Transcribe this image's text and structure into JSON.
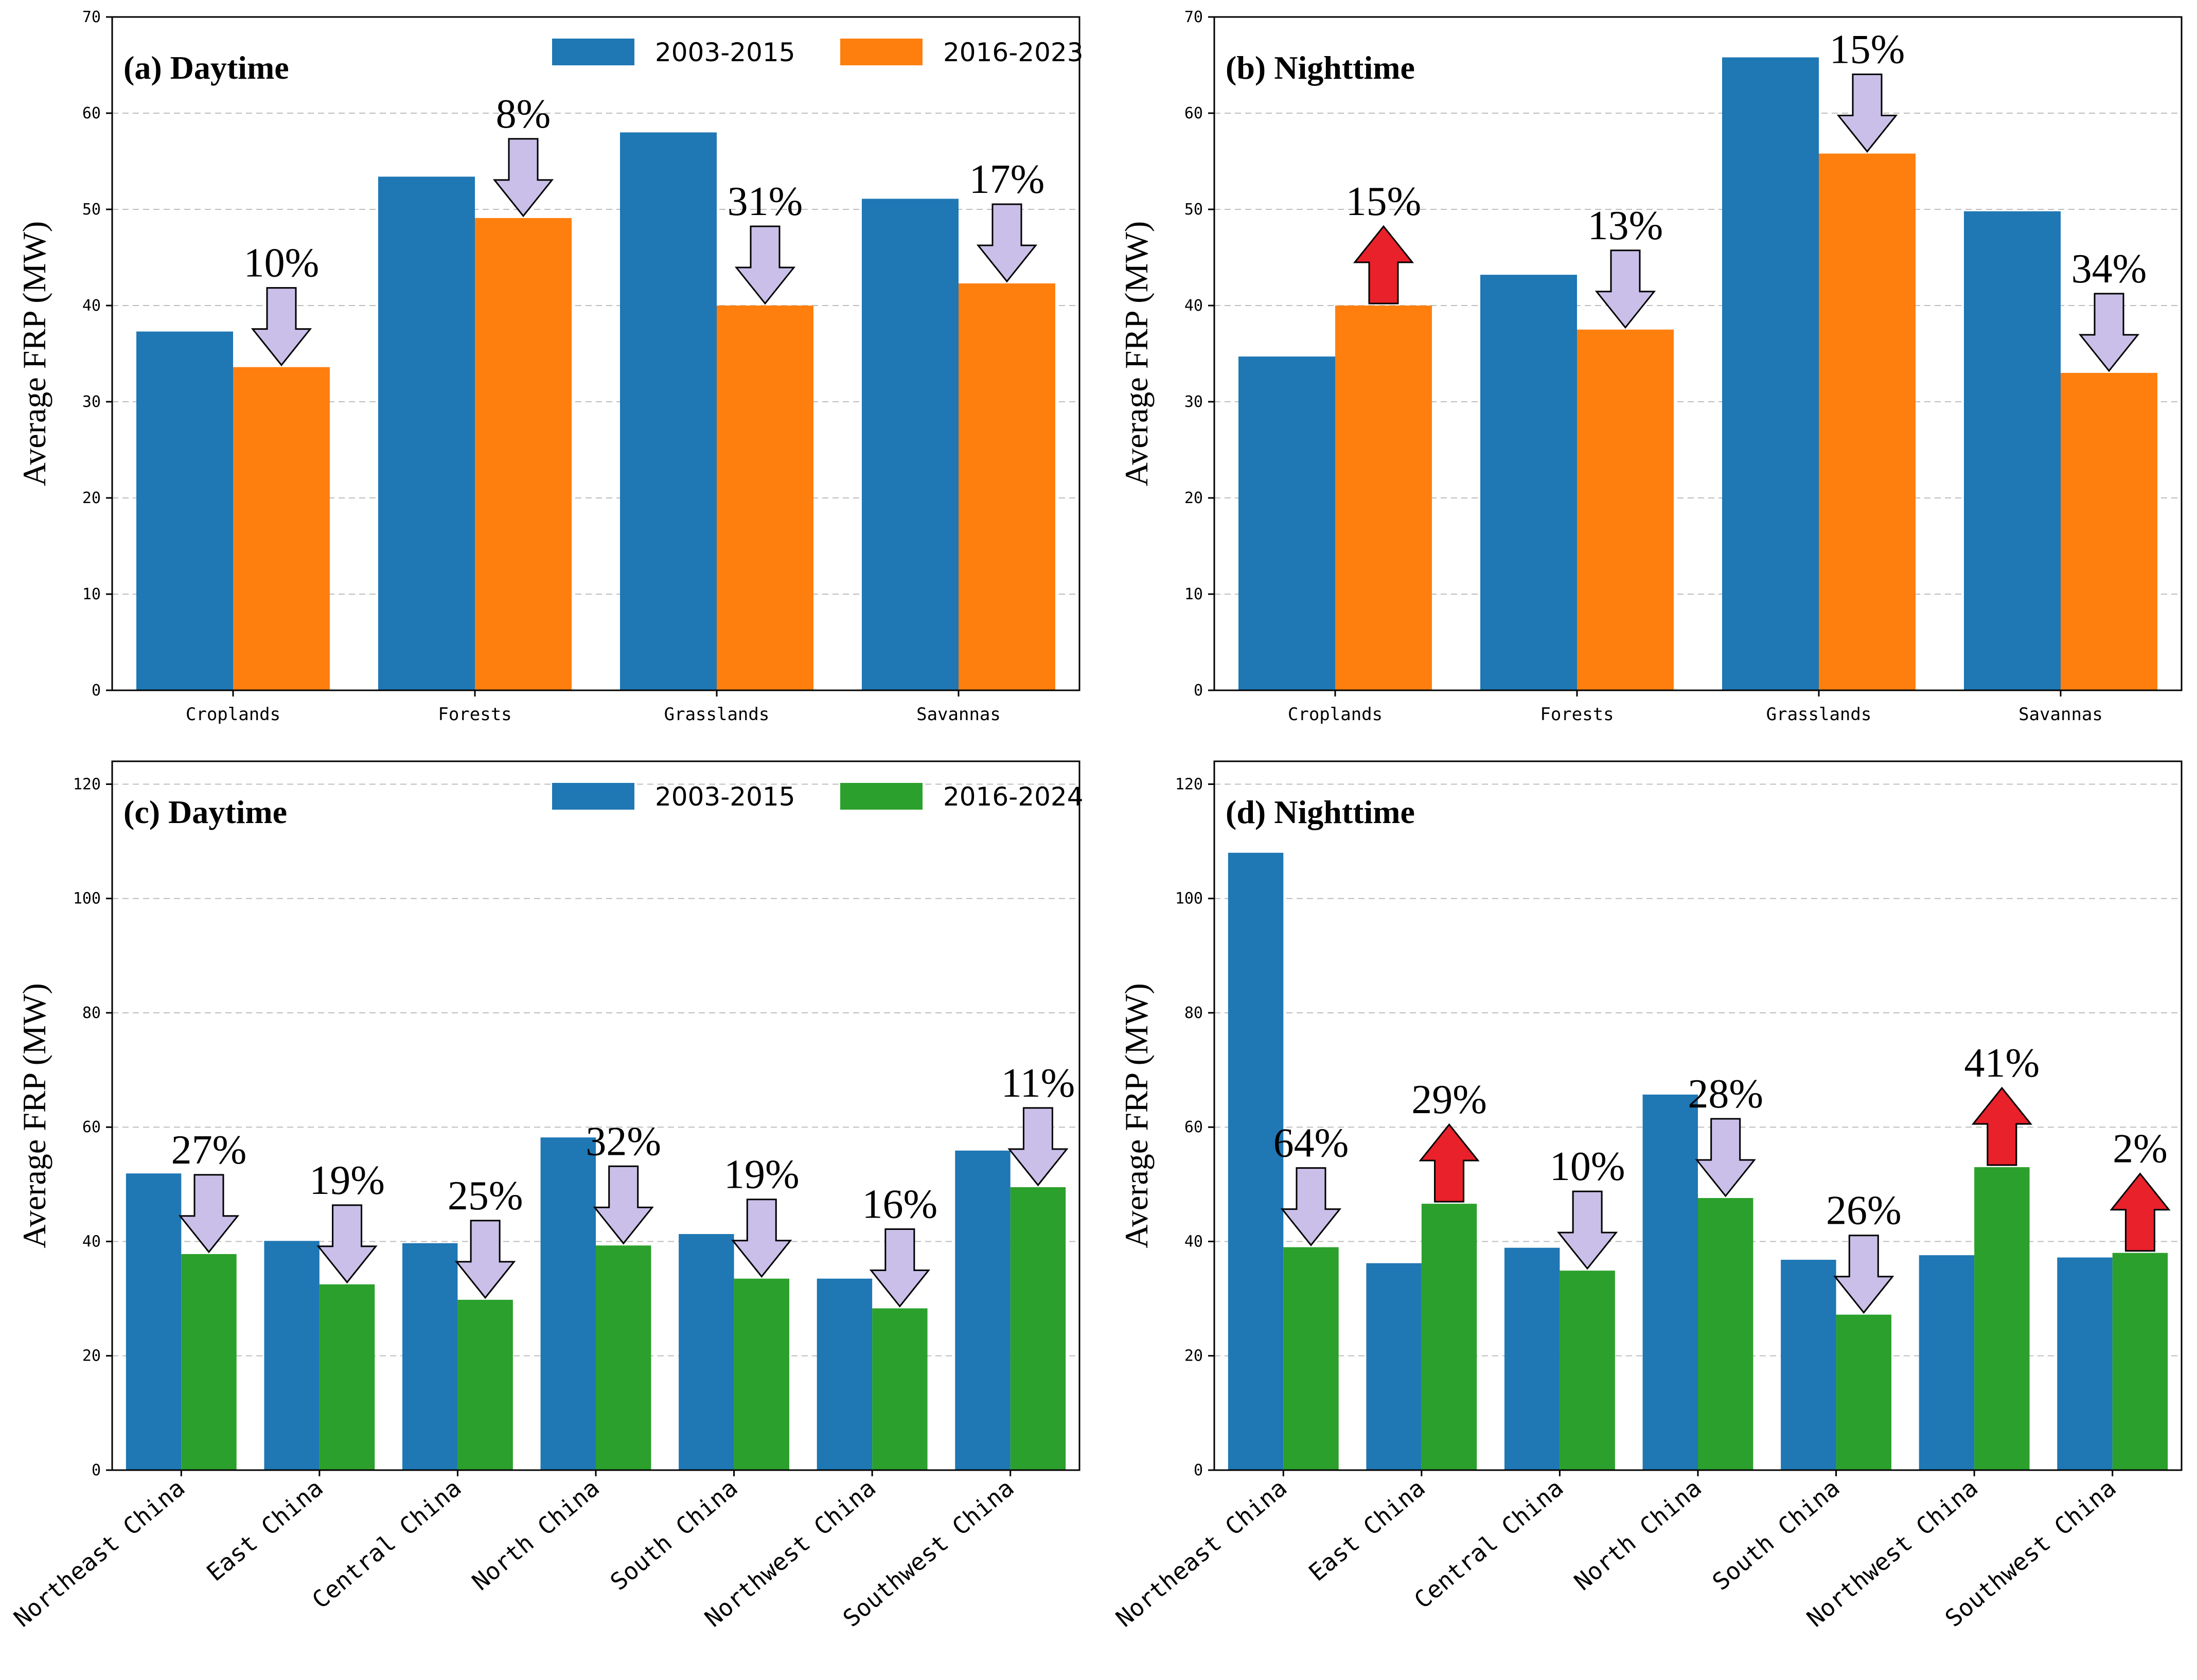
{
  "colors": {
    "series_a": "#1f77b4",
    "series_b_orange": "#ff7f0e",
    "series_b_green": "#2ca02c",
    "arrow_down": "#c9bfe8",
    "arrow_up": "#e8212a"
  },
  "chart_data": [
    {
      "type": "bar",
      "title": "(a) Daytime",
      "ylabel": "Average FRP (MW)",
      "xlabel": "",
      "ylim": [
        0,
        70
      ],
      "yticks": [
        0,
        10,
        20,
        30,
        40,
        50,
        60,
        70
      ],
      "grid": true,
      "legend_placement": "top-right",
      "categories": [
        "Croplands",
        "Forests",
        "Grasslands",
        "Savannas"
      ],
      "series": [
        {
          "name": "2003-2015",
          "values": [
            37.3,
            53.4,
            58.0,
            51.1
          ]
        },
        {
          "name": "2016-2023",
          "values": [
            33.6,
            49.1,
            40.0,
            42.3
          ]
        }
      ],
      "annotations": [
        {
          "category": "Croplands",
          "text": "10%",
          "direction": "down"
        },
        {
          "category": "Forests",
          "text": "8%",
          "direction": "down"
        },
        {
          "category": "Grasslands",
          "text": "31%",
          "direction": "down"
        },
        {
          "category": "Savannas",
          "text": "17%",
          "direction": "down"
        }
      ]
    },
    {
      "type": "bar",
      "title": "(b) Nighttime",
      "ylabel": "Average FRP (MW)",
      "xlabel": "",
      "ylim": [
        0,
        70
      ],
      "yticks": [
        0,
        10,
        20,
        30,
        40,
        50,
        60,
        70
      ],
      "grid": true,
      "categories": [
        "Croplands",
        "Forests",
        "Grasslands",
        "Savannas"
      ],
      "series": [
        {
          "name": "2003-2015",
          "values": [
            34.7,
            43.2,
            65.8,
            49.8
          ]
        },
        {
          "name": "2016-2023",
          "values": [
            40.0,
            37.5,
            55.8,
            33.0
          ]
        }
      ],
      "annotations": [
        {
          "category": "Croplands",
          "text": "15%",
          "direction": "up"
        },
        {
          "category": "Forests",
          "text": "13%",
          "direction": "down"
        },
        {
          "category": "Grasslands",
          "text": "15%",
          "direction": "down"
        },
        {
          "category": "Savannas",
          "text": "34%",
          "direction": "down"
        }
      ]
    },
    {
      "type": "bar",
      "title": "(c) Daytime",
      "ylabel": "Average FRP (MW)",
      "xlabel": "",
      "ylim": [
        0,
        124
      ],
      "yticks": [
        0,
        20,
        40,
        60,
        80,
        100,
        120
      ],
      "grid": true,
      "legend_placement": "top-right",
      "categories": [
        "Northeast China",
        "East China",
        "Central China",
        "North China",
        "South China",
        "Northwest China",
        "Southwest China"
      ],
      "series": [
        {
          "name": "2003-2015",
          "values": [
            51.9,
            40.1,
            39.7,
            58.2,
            41.3,
            33.5,
            55.9
          ]
        },
        {
          "name": "2016-2024",
          "values": [
            37.8,
            32.5,
            29.8,
            39.3,
            33.5,
            28.3,
            49.5
          ]
        }
      ],
      "annotations": [
        {
          "category": "Northeast China",
          "text": "27%",
          "direction": "down"
        },
        {
          "category": "East China",
          "text": "19%",
          "direction": "down"
        },
        {
          "category": "Central China",
          "text": "25%",
          "direction": "down"
        },
        {
          "category": "North China",
          "text": "32%",
          "direction": "down"
        },
        {
          "category": "South China",
          "text": "19%",
          "direction": "down"
        },
        {
          "category": "Northwest China",
          "text": "16%",
          "direction": "down"
        },
        {
          "category": "Southwest China",
          "text": "11%",
          "direction": "down"
        }
      ]
    },
    {
      "type": "bar",
      "title": "(d) Nighttime",
      "ylabel": "Average FRP (MW)",
      "xlabel": "",
      "ylim": [
        0,
        124
      ],
      "yticks": [
        0,
        20,
        40,
        60,
        80,
        100,
        120
      ],
      "grid": true,
      "categories": [
        "Northeast China",
        "East China",
        "Central China",
        "North China",
        "South China",
        "Northwest China",
        "Southwest China"
      ],
      "series": [
        {
          "name": "2003-2015",
          "values": [
            108.0,
            36.2,
            38.9,
            65.7,
            36.8,
            37.6,
            37.2
          ]
        },
        {
          "name": "2016-2024",
          "values": [
            39.0,
            46.6,
            34.9,
            47.6,
            27.2,
            53.0,
            38.0
          ]
        }
      ],
      "annotations": [
        {
          "category": "Northeast China",
          "text": "64%",
          "direction": "down"
        },
        {
          "category": "East China",
          "text": "29%",
          "direction": "up"
        },
        {
          "category": "Central China",
          "text": "10%",
          "direction": "down"
        },
        {
          "category": "North China",
          "text": "28%",
          "direction": "down"
        },
        {
          "category": "South China",
          "text": "26%",
          "direction": "down"
        },
        {
          "category": "Northwest China",
          "text": "41%",
          "direction": "up"
        },
        {
          "category": "Southwest China",
          "text": "2%",
          "direction": "up"
        }
      ]
    }
  ]
}
